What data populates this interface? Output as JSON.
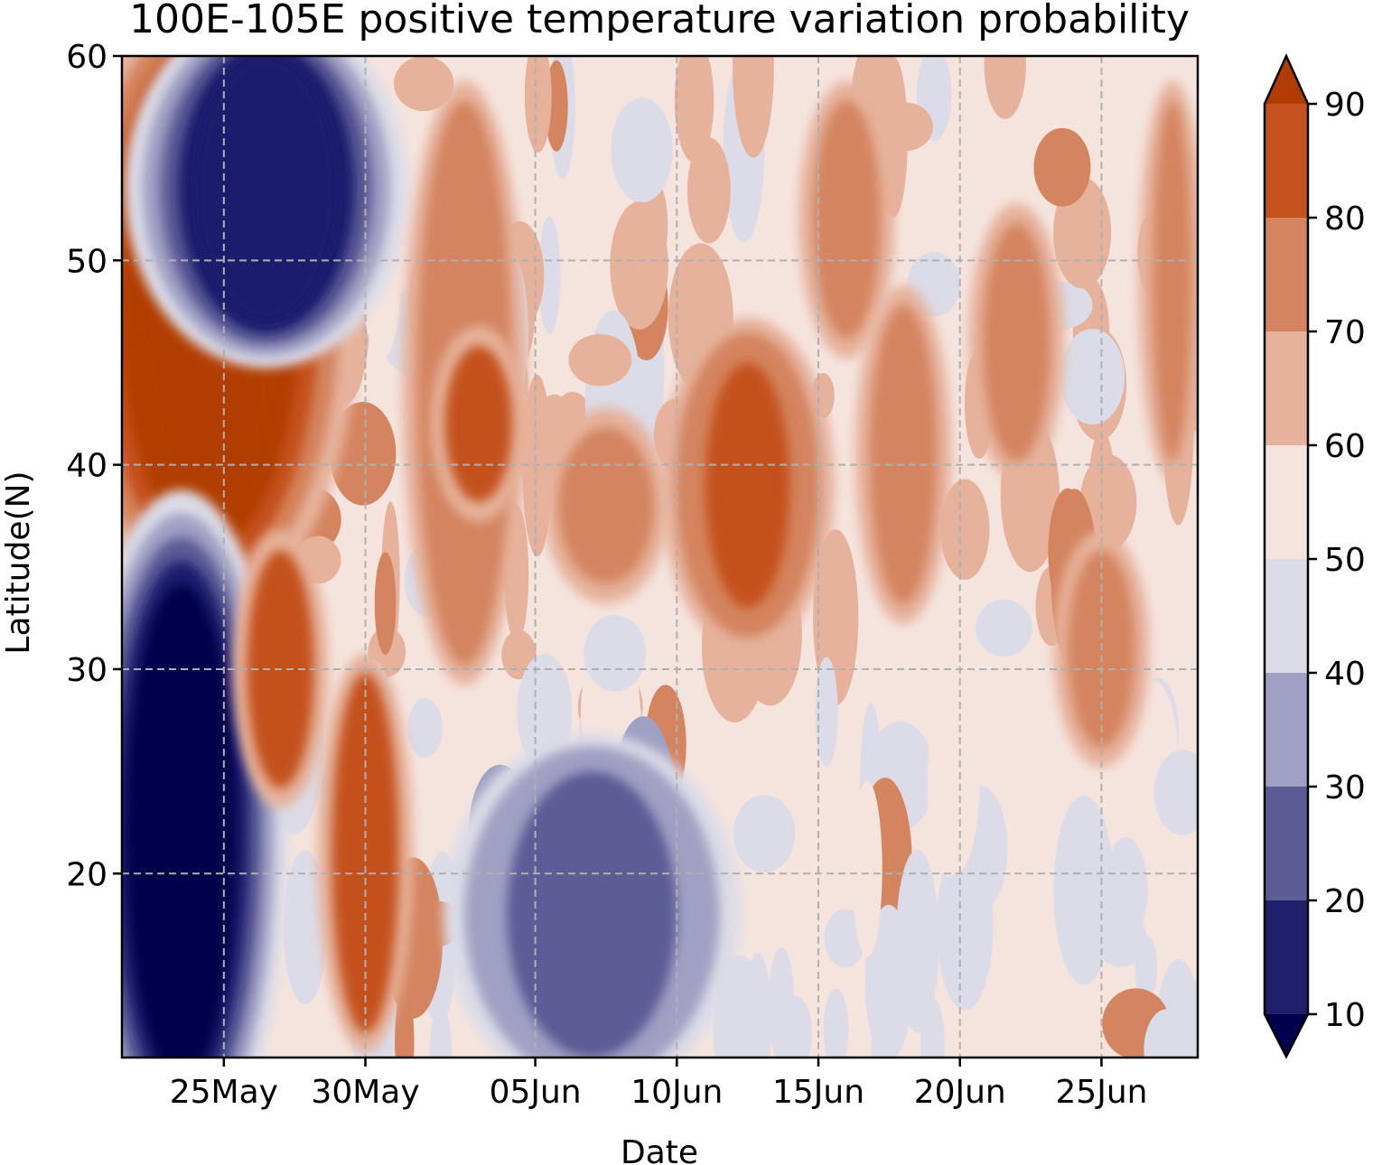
{
  "chart_data": {
    "type": "heatmap",
    "title": "100E-105E positive temperature variation probability",
    "xlabel": "Date",
    "ylabel": "Latitude(N)",
    "x_ticks": [
      "25May",
      "30May",
      "05Jun",
      "10Jun",
      "15Jun",
      "20Jun",
      "25Jun"
    ],
    "x_range": [
      "22May",
      "29Jun"
    ],
    "y_ticks": [
      20,
      30,
      40,
      50,
      60
    ],
    "ylim": [
      11,
      60
    ],
    "grid": true,
    "colorbar": {
      "ticks": [
        10,
        20,
        30,
        40,
        50,
        60,
        70,
        80,
        90
      ],
      "levels": [
        10,
        20,
        30,
        40,
        50,
        60,
        70,
        80,
        90
      ],
      "extend": "both",
      "colors": [
        "#00004c",
        "#1f1f6e",
        "#5c5c96",
        "#a0a0c4",
        "#dcdce8",
        "#f5e4de",
        "#e6b29c",
        "#d4845e",
        "#c4511e",
        "#b23c00"
      ],
      "placement": "right"
    },
    "features": [
      {
        "name": "high-probability core",
        "x_range": [
          "22May",
          "27May"
        ],
        "y_range": [
          37,
          59
        ],
        "level_min": 90
      },
      {
        "name": "low-probability core",
        "x_range": [
          "22May",
          "25May"
        ],
        "y_range": [
          11,
          33
        ],
        "level_max": 10
      },
      {
        "name": "low-probability band",
        "x_range": [
          "24May",
          "29May"
        ],
        "y_range": [
          47,
          60
        ],
        "level_max": 20
      },
      {
        "name": "low-probability patch",
        "x_range": [
          "04Jun",
          "10Jun"
        ],
        "y_range": [
          11,
          25
        ],
        "level_max": 40
      },
      {
        "name": "moderate-high patch",
        "x_range": [
          "11Jun",
          "14Jun"
        ],
        "y_range": [
          33,
          45
        ],
        "level_min": 70
      }
    ]
  }
}
